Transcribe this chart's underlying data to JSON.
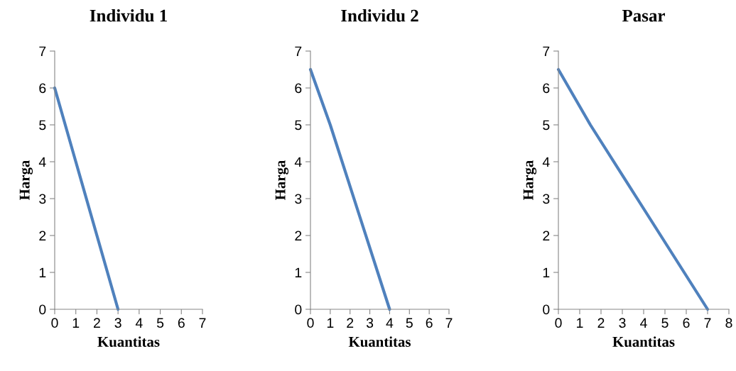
{
  "chart_data": [
    {
      "type": "line",
      "title": "Individu 1",
      "xlabel": "Kuantitas",
      "ylabel": "Harga",
      "x": [
        0,
        1,
        2,
        3
      ],
      "values": [
        6,
        4,
        2,
        0
      ],
      "color": "#4f81bd",
      "xlim": [
        0,
        7
      ],
      "ylim": [
        0,
        7
      ],
      "xticks": [
        0,
        1,
        2,
        3,
        4,
        5,
        6,
        7
      ],
      "yticks": [
        0,
        1,
        2,
        3,
        4,
        5,
        6,
        7
      ]
    },
    {
      "type": "line",
      "title": "Individu 2",
      "xlabel": "Kuantitas",
      "ylabel": "Harga",
      "x": [
        0,
        1,
        4
      ],
      "values": [
        6.5,
        5,
        0
      ],
      "color": "#4f81bd",
      "xlim": [
        0,
        7
      ],
      "ylim": [
        0,
        7
      ],
      "xticks": [
        0,
        1,
        2,
        3,
        4,
        5,
        6,
        7
      ],
      "yticks": [
        0,
        1,
        2,
        3,
        4,
        5,
        6,
        7
      ]
    },
    {
      "type": "line",
      "title": "Pasar",
      "xlabel": "Kuantitas",
      "ylabel": "Harga",
      "x": [
        0,
        1.5,
        3.7,
        5.9,
        7
      ],
      "values": [
        6.5,
        5,
        3,
        1,
        0
      ],
      "color": "#4f81bd",
      "xlim": [
        0,
        8
      ],
      "ylim": [
        0,
        7
      ],
      "xticks": [
        0,
        1,
        2,
        3,
        4,
        5,
        6,
        7,
        8
      ],
      "yticks": [
        0,
        1,
        2,
        3,
        4,
        5,
        6,
        7
      ]
    }
  ]
}
